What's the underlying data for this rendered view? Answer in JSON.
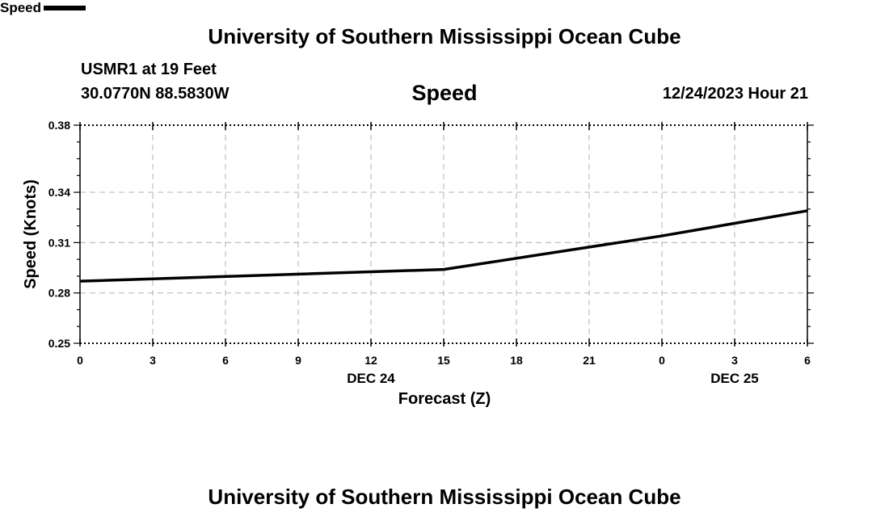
{
  "header": {
    "title": "University of Southern Mississippi Ocean Cube",
    "station": "USMR1 at 19 Feet",
    "coordinates": "30.0770N  88.5830W",
    "timestamp": "12/24/2023 Hour 21"
  },
  "footer": {
    "title": "University of Southern Mississippi Ocean Cube"
  },
  "chart_data": {
    "type": "line",
    "title": "Speed",
    "xlabel": "Forecast (Z)",
    "ylabel": "Speed (Knots)",
    "ylim": [
      0.25,
      0.38
    ],
    "yticks": [
      "0.38",
      "0.34",
      "0.31",
      "0.28",
      "0.25"
    ],
    "xticks": [
      "0",
      "3",
      "6",
      "9",
      "12",
      "15",
      "18",
      "21",
      "0",
      "3",
      "6"
    ],
    "date_labels": [
      {
        "label": "DEC 24",
        "at_tick": 4
      },
      {
        "label": "DEC 25",
        "at_tick": 9
      }
    ],
    "grid": true,
    "legend": "bottom-left",
    "series": [
      {
        "name": "Speed",
        "color": "#000000",
        "points": [
          {
            "tick": 0,
            "value": 0.287
          },
          {
            "tick": 5,
            "value": 0.294
          },
          {
            "tick": 8,
            "value": 0.314
          },
          {
            "tick": 10,
            "value": 0.329
          }
        ]
      }
    ]
  }
}
